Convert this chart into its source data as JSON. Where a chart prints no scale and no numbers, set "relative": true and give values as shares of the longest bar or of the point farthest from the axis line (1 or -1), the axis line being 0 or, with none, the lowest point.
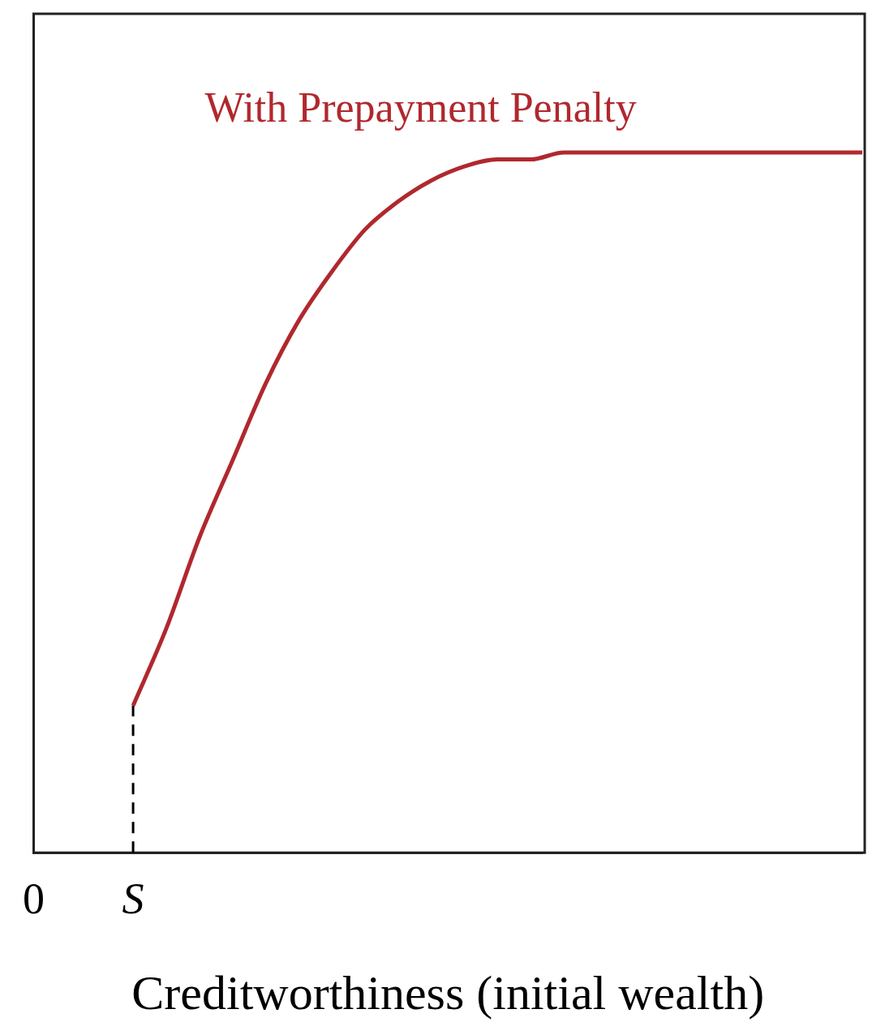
{
  "chart_data": {
    "type": "line",
    "relative": true,
    "xlabel": "Creditworthiness (initial wealth)",
    "tick_labels": "x",
    "line_style": "solid",
    "categories": [
      "0",
      null,
      null,
      "S",
      null,
      null,
      null,
      null,
      null,
      null,
      null,
      null,
      null,
      null,
      null,
      null,
      null,
      null,
      null,
      null,
      null,
      null,
      null,
      null,
      null,
      null
    ],
    "series": [
      {
        "name": "With Prepayment Penalty",
        "color": "#b0282e",
        "values": [
          null,
          null,
          null,
          0.21,
          0.32,
          0.45,
          0.56,
          0.67,
          0.76,
          0.83,
          0.89,
          0.93,
          0.96,
          0.98,
          0.99,
          0.99,
          1,
          1,
          1,
          1,
          1,
          1,
          1,
          1,
          1,
          1
        ]
      }
    ],
    "ref_lines": [
      {
        "axis": "x",
        "value": "S",
        "color": "#000000",
        "line_style": "dashed"
      }
    ]
  }
}
